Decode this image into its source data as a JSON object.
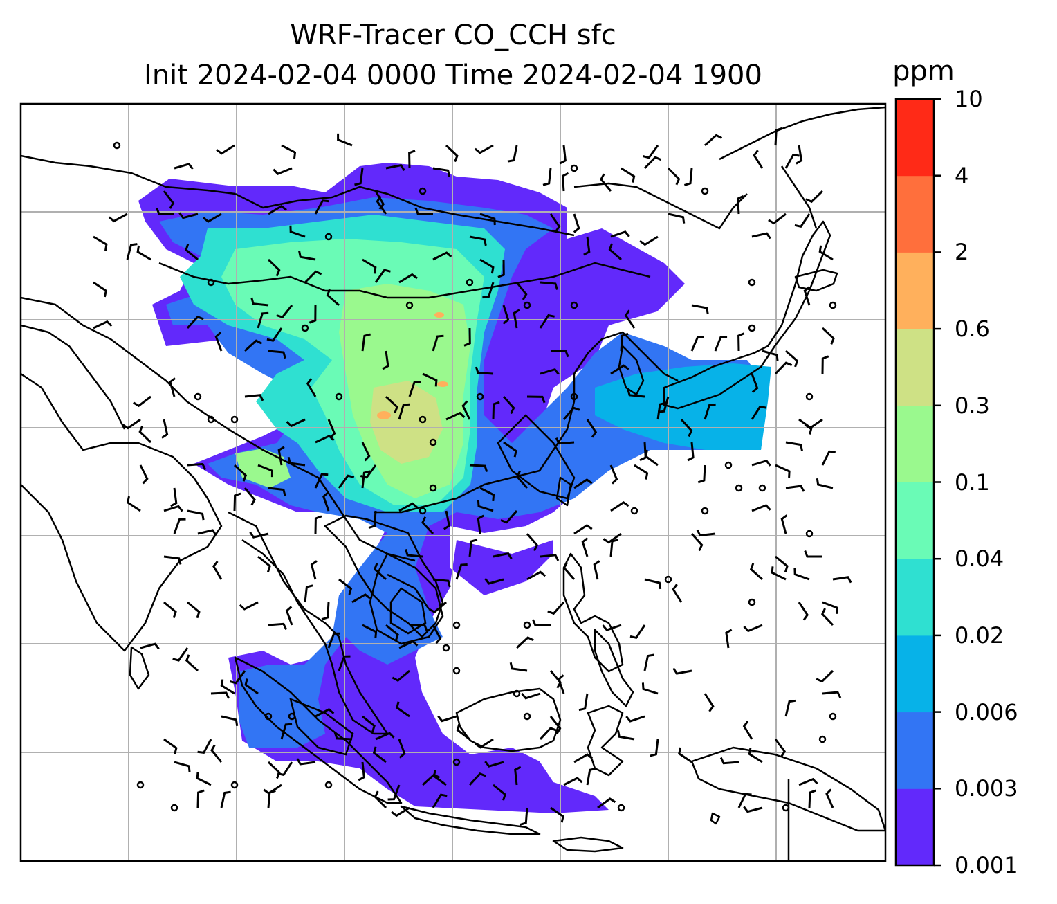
{
  "title": {
    "line1": "WRF-Tracer CO_CCH sfc",
    "line2": "Init 2024-02-04 0000 Time 2024-02-04 1900"
  },
  "colorbar": {
    "unit": "ppm",
    "levels": [
      "0.001",
      "0.003",
      "0.006",
      "0.02",
      "0.04",
      "0.1",
      "0.3",
      "0.6",
      "2",
      "4",
      "10"
    ],
    "colors": [
      "#6229fb",
      "#3275f4",
      "#07b2e8",
      "#2fe0d1",
      "#6afbb6",
      "#9af98e",
      "#cee185",
      "#ffb05c",
      "#ff6f3c",
      "#ff2a17"
    ]
  },
  "map": {
    "region": "East Asia / Southeast Asia",
    "gridlines": true,
    "overlays": [
      "coastlines",
      "country borders",
      "CO tracer filled contours",
      "concentration contour lines",
      "wind barbs"
    ]
  }
}
